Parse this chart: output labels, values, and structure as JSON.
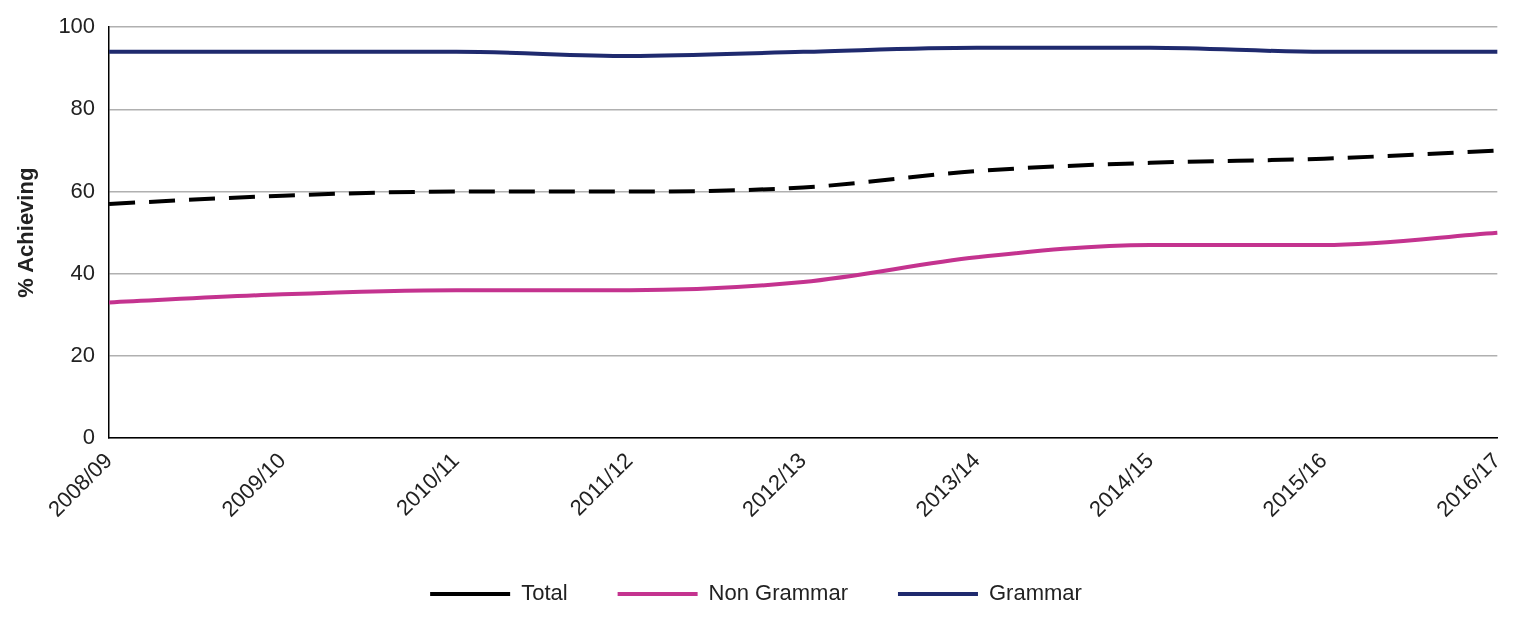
{
  "chart_data": {
    "type": "line",
    "ylabel": "% Achieving",
    "categories": [
      "2008/09",
      "2009/10",
      "2010/11",
      "2011/12",
      "2012/13",
      "2013/14",
      "2014/15",
      "2015/16",
      "2016/17"
    ],
    "series": [
      {
        "name": "Total",
        "color": "#000000",
        "line_style": "dashed",
        "values": [
          57,
          59,
          60,
          60,
          61,
          65,
          67,
          68,
          70
        ]
      },
      {
        "name": "Non Grammar",
        "color": "#c4338f",
        "line_style": "solid",
        "values": [
          33,
          35,
          36,
          36,
          38,
          44,
          47,
          47,
          50
        ]
      },
      {
        "name": "Grammar",
        "color": "#1f2a6e",
        "line_style": "solid",
        "values": [
          94,
          94,
          94,
          93,
          94,
          95,
          95,
          94,
          94
        ]
      }
    ],
    "ylim": [
      0,
      100
    ],
    "yticks": [
      0,
      20,
      40,
      60,
      80,
      100
    ],
    "grid": "y",
    "legend": "bottom",
    "marker": "none"
  }
}
